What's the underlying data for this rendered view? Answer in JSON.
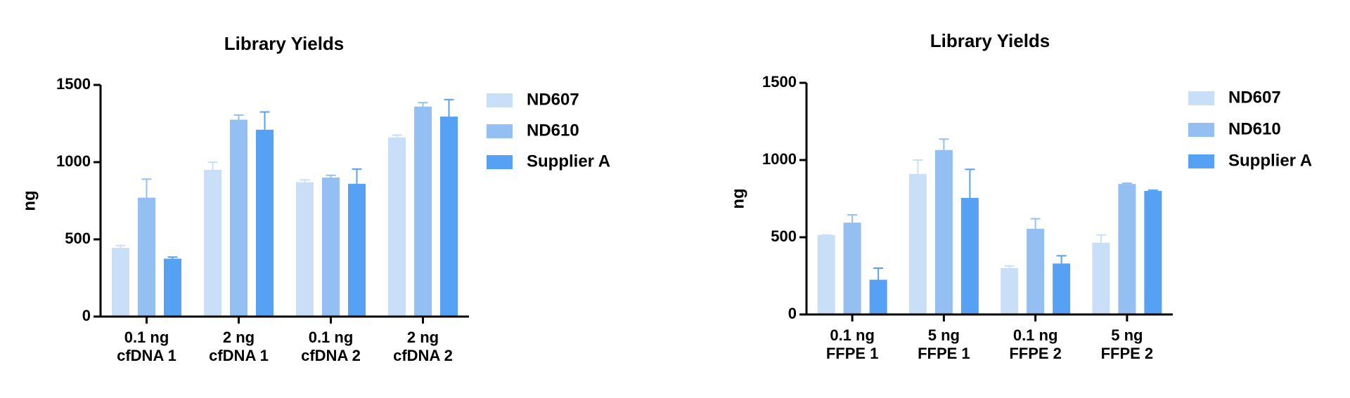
{
  "chart_data": [
    {
      "type": "bar",
      "title": "Library Yields",
      "y_label": "ng",
      "categories": [
        "0.1 ng\ncfDNA 1",
        "2 ng\ncfDNA 1",
        "0.1 ng\ncfDNA 2",
        "2 ng\ncfDNA 2"
      ],
      "series": [
        {
          "name": "ND607",
          "color": "#c9dff7",
          "values": [
            445,
            950,
            870,
            1160
          ],
          "errors": [
            15,
            50,
            15,
            15
          ]
        },
        {
          "name": "ND610",
          "color": "#93bff2",
          "values": [
            770,
            1275,
            900,
            1360
          ],
          "errors": [
            120,
            30,
            15,
            25
          ]
        },
        {
          "name": "Supplier A",
          "color": "#57a1f5",
          "values": [
            375,
            1210,
            860,
            1295
          ],
          "errors": [
            10,
            115,
            95,
            110
          ]
        }
      ],
      "ylim": [
        0,
        1500
      ],
      "yticks": [
        0,
        500,
        1000,
        1500
      ],
      "legend": "right"
    },
    {
      "type": "bar",
      "title": "Library Yields",
      "y_label": "ng",
      "categories": [
        "0.1 ng\nFFPE 1",
        "5 ng\nFFPE 1",
        "0.1 ng\nFFPE 2",
        "5 ng\nFFPE 2"
      ],
      "series": [
        {
          "name": "ND607",
          "color": "#c9dff7",
          "values": [
            515,
            910,
            300,
            465
          ],
          "errors": [
            0,
            90,
            15,
            50
          ]
        },
        {
          "name": "ND610",
          "color": "#93bff2",
          "values": [
            595,
            1065,
            555,
            845
          ],
          "errors": [
            50,
            70,
            65,
            5
          ]
        },
        {
          "name": "Supplier A",
          "color": "#57a1f5",
          "values": [
            225,
            755,
            330,
            800
          ],
          "errors": [
            75,
            185,
            50,
            5
          ]
        }
      ],
      "ylim": [
        0,
        1500
      ],
      "yticks": [
        0,
        500,
        1000,
        1500
      ],
      "legend": "right"
    }
  ]
}
